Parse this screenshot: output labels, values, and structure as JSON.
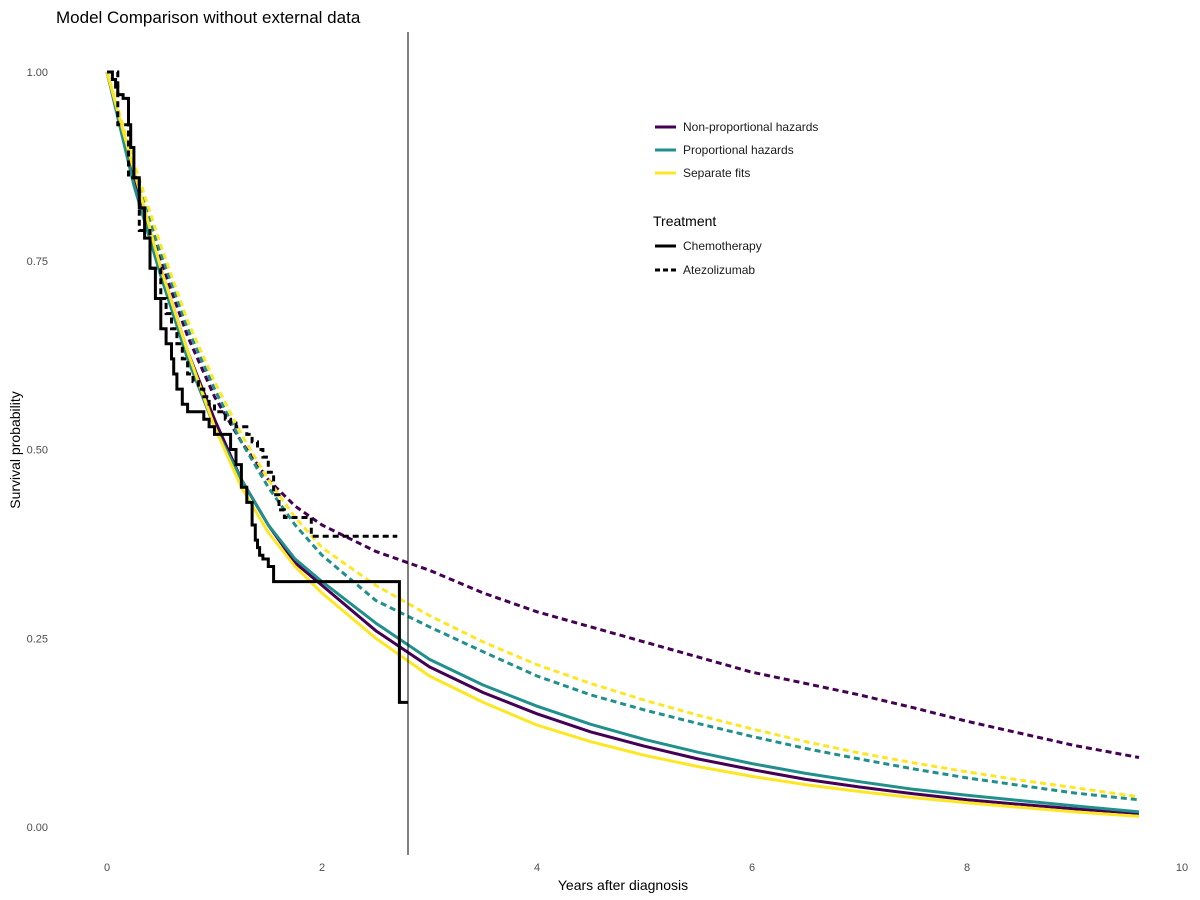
{
  "chart_data": {
    "type": "line",
    "title": "Model Comparison without external data",
    "xlabel": "Years after diagnosis",
    "ylabel": "Survival probability",
    "xlim": [
      0,
      10
    ],
    "ylim": [
      0,
      1
    ],
    "x_ticks": [
      "0",
      "2",
      "4",
      "6",
      "8",
      "10"
    ],
    "y_ticks": [
      "0.00",
      "0.25",
      "0.50",
      "0.75",
      "1.00"
    ],
    "grid": false,
    "legend_position": "top-right",
    "colors": {
      "Non-proportional hazards": "#440154",
      "Proportional hazards": "#21908C",
      "Separate fits": "#FDE725",
      "km": "#000000"
    },
    "legend": {
      "model_entries": [
        "Non-proportional hazards",
        "Proportional hazards",
        "Separate fits"
      ],
      "treatment_title": "Treatment",
      "treatment_entries": [
        {
          "label": "Chemotherapy",
          "dash": "solid"
        },
        {
          "label": "Atezolizumab",
          "dash": "dashed"
        }
      ]
    },
    "reference_line_x": 2.8,
    "km_curves": [
      {
        "treatment": "Chemotherapy",
        "dash": "solid",
        "x": [
          0,
          0.05,
          0.08,
          0.1,
          0.12,
          0.15,
          0.2,
          0.22,
          0.25,
          0.3,
          0.35,
          0.4,
          0.45,
          0.5,
          0.55,
          0.6,
          0.62,
          0.65,
          0.7,
          0.75,
          0.8,
          0.85,
          0.9,
          0.95,
          1.0,
          1.05,
          1.1,
          1.15,
          1.2,
          1.25,
          1.3,
          1.35,
          1.38,
          1.4,
          1.42,
          1.45,
          1.5,
          1.55,
          2.72,
          2.72,
          2.8
        ],
        "y": [
          1.0,
          0.99,
          0.98,
          0.97,
          0.97,
          0.965,
          0.93,
          0.9,
          0.86,
          0.82,
          0.78,
          0.74,
          0.7,
          0.66,
          0.64,
          0.62,
          0.6,
          0.58,
          0.56,
          0.55,
          0.55,
          0.55,
          0.54,
          0.53,
          0.52,
          0.52,
          0.52,
          0.5,
          0.48,
          0.45,
          0.43,
          0.4,
          0.38,
          0.37,
          0.36,
          0.355,
          0.345,
          0.325,
          0.325,
          0.165,
          0.165
        ]
      },
      {
        "treatment": "Atezolizumab",
        "dash": "dashed",
        "x": [
          0,
          0.1,
          0.2,
          0.3,
          0.4,
          0.5,
          0.55,
          0.6,
          0.65,
          0.7,
          0.75,
          0.8,
          0.85,
          0.9,
          0.95,
          1.0,
          1.05,
          1.1,
          1.15,
          1.2,
          1.25,
          1.3,
          1.35,
          1.4,
          1.45,
          1.5,
          1.55,
          1.6,
          1.65,
          1.75,
          1.85,
          1.9,
          2.0,
          2.7
        ],
        "y": [
          1.0,
          0.93,
          0.86,
          0.79,
          0.74,
          0.7,
          0.68,
          0.66,
          0.64,
          0.62,
          0.6,
          0.59,
          0.58,
          0.57,
          0.56,
          0.55,
          0.55,
          0.54,
          0.535,
          0.53,
          0.53,
          0.52,
          0.51,
          0.5,
          0.49,
          0.47,
          0.44,
          0.42,
          0.41,
          0.41,
          0.41,
          0.385,
          0.385,
          0.385
        ]
      }
    ],
    "series": [
      {
        "model": "Non-proportional hazards",
        "treatment": "Chemotherapy",
        "dash": "solid",
        "x": [
          0,
          0.25,
          0.5,
          0.75,
          1,
          1.25,
          1.5,
          1.75,
          2,
          2.5,
          3,
          3.5,
          4,
          4.5,
          5,
          5.5,
          6,
          6.5,
          7,
          7.5,
          8,
          8.5,
          9,
          9.6
        ],
        "y": [
          1.0,
          0.86,
          0.74,
          0.63,
          0.54,
          0.46,
          0.4,
          0.35,
          0.32,
          0.26,
          0.212,
          0.178,
          0.15,
          0.126,
          0.107,
          0.09,
          0.076,
          0.063,
          0.053,
          0.044,
          0.036,
          0.03,
          0.024,
          0.018
        ]
      },
      {
        "model": "Non-proportional hazards",
        "treatment": "Atezolizumab",
        "dash": "dashed",
        "x": [
          0,
          0.25,
          0.5,
          0.75,
          1,
          1.25,
          1.5,
          1.75,
          2,
          2.5,
          3,
          3.5,
          4,
          4.5,
          5,
          5.5,
          6,
          6.5,
          7,
          7.5,
          8,
          8.5,
          9,
          9.6
        ],
        "y": [
          1.0,
          0.86,
          0.75,
          0.65,
          0.57,
          0.51,
          0.46,
          0.425,
          0.4,
          0.365,
          0.34,
          0.31,
          0.285,
          0.265,
          0.245,
          0.225,
          0.205,
          0.19,
          0.175,
          0.158,
          0.14,
          0.124,
          0.108,
          0.092
        ]
      },
      {
        "model": "Proportional hazards",
        "treatment": "Chemotherapy",
        "dash": "solid",
        "x": [
          0,
          0.25,
          0.5,
          0.75,
          1,
          1.25,
          1.5,
          1.75,
          2,
          2.5,
          3,
          3.5,
          4,
          4.5,
          5,
          5.5,
          6,
          6.5,
          7,
          7.5,
          8,
          8.5,
          9,
          9.6
        ],
        "y": [
          1.0,
          0.85,
          0.73,
          0.62,
          0.53,
          0.46,
          0.4,
          0.355,
          0.325,
          0.27,
          0.222,
          0.188,
          0.16,
          0.136,
          0.116,
          0.099,
          0.084,
          0.071,
          0.06,
          0.05,
          0.042,
          0.035,
          0.028,
          0.02
        ]
      },
      {
        "model": "Proportional hazards",
        "treatment": "Atezolizumab",
        "dash": "dashed",
        "x": [
          0,
          0.25,
          0.5,
          0.75,
          1,
          1.25,
          1.5,
          1.75,
          2,
          2.5,
          3,
          3.5,
          4,
          4.5,
          5,
          5.5,
          6,
          6.5,
          7,
          7.5,
          8,
          8.5,
          9,
          9.6
        ],
        "y": [
          1.0,
          0.87,
          0.76,
          0.66,
          0.58,
          0.51,
          0.45,
          0.4,
          0.36,
          0.3,
          0.265,
          0.232,
          0.2,
          0.175,
          0.155,
          0.137,
          0.12,
          0.104,
          0.09,
          0.077,
          0.065,
          0.055,
          0.045,
          0.036
        ]
      },
      {
        "model": "Separate fits",
        "treatment": "Chemotherapy",
        "dash": "solid",
        "x": [
          0,
          0.25,
          0.5,
          0.75,
          1,
          1.25,
          1.5,
          1.75,
          2,
          2.5,
          3,
          3.5,
          4,
          4.5,
          5,
          5.5,
          6,
          6.5,
          7,
          7.5,
          8,
          8.5,
          9,
          9.6
        ],
        "y": [
          1.0,
          0.87,
          0.74,
          0.63,
          0.53,
          0.45,
          0.39,
          0.345,
          0.31,
          0.25,
          0.2,
          0.165,
          0.135,
          0.113,
          0.095,
          0.08,
          0.067,
          0.056,
          0.047,
          0.039,
          0.032,
          0.026,
          0.02,
          0.014
        ]
      },
      {
        "model": "Separate fits",
        "treatment": "Atezolizumab",
        "dash": "dashed",
        "x": [
          0,
          0.25,
          0.5,
          0.75,
          1,
          1.25,
          1.5,
          1.75,
          2,
          2.5,
          3,
          3.5,
          4,
          4.5,
          5,
          5.5,
          6,
          6.5,
          7,
          7.5,
          8,
          8.5,
          9,
          9.6
        ],
        "y": [
          1.0,
          0.88,
          0.77,
          0.67,
          0.59,
          0.52,
          0.46,
          0.41,
          0.37,
          0.32,
          0.28,
          0.245,
          0.215,
          0.19,
          0.168,
          0.148,
          0.13,
          0.113,
          0.098,
          0.085,
          0.073,
          0.062,
          0.052,
          0.04
        ]
      }
    ]
  }
}
